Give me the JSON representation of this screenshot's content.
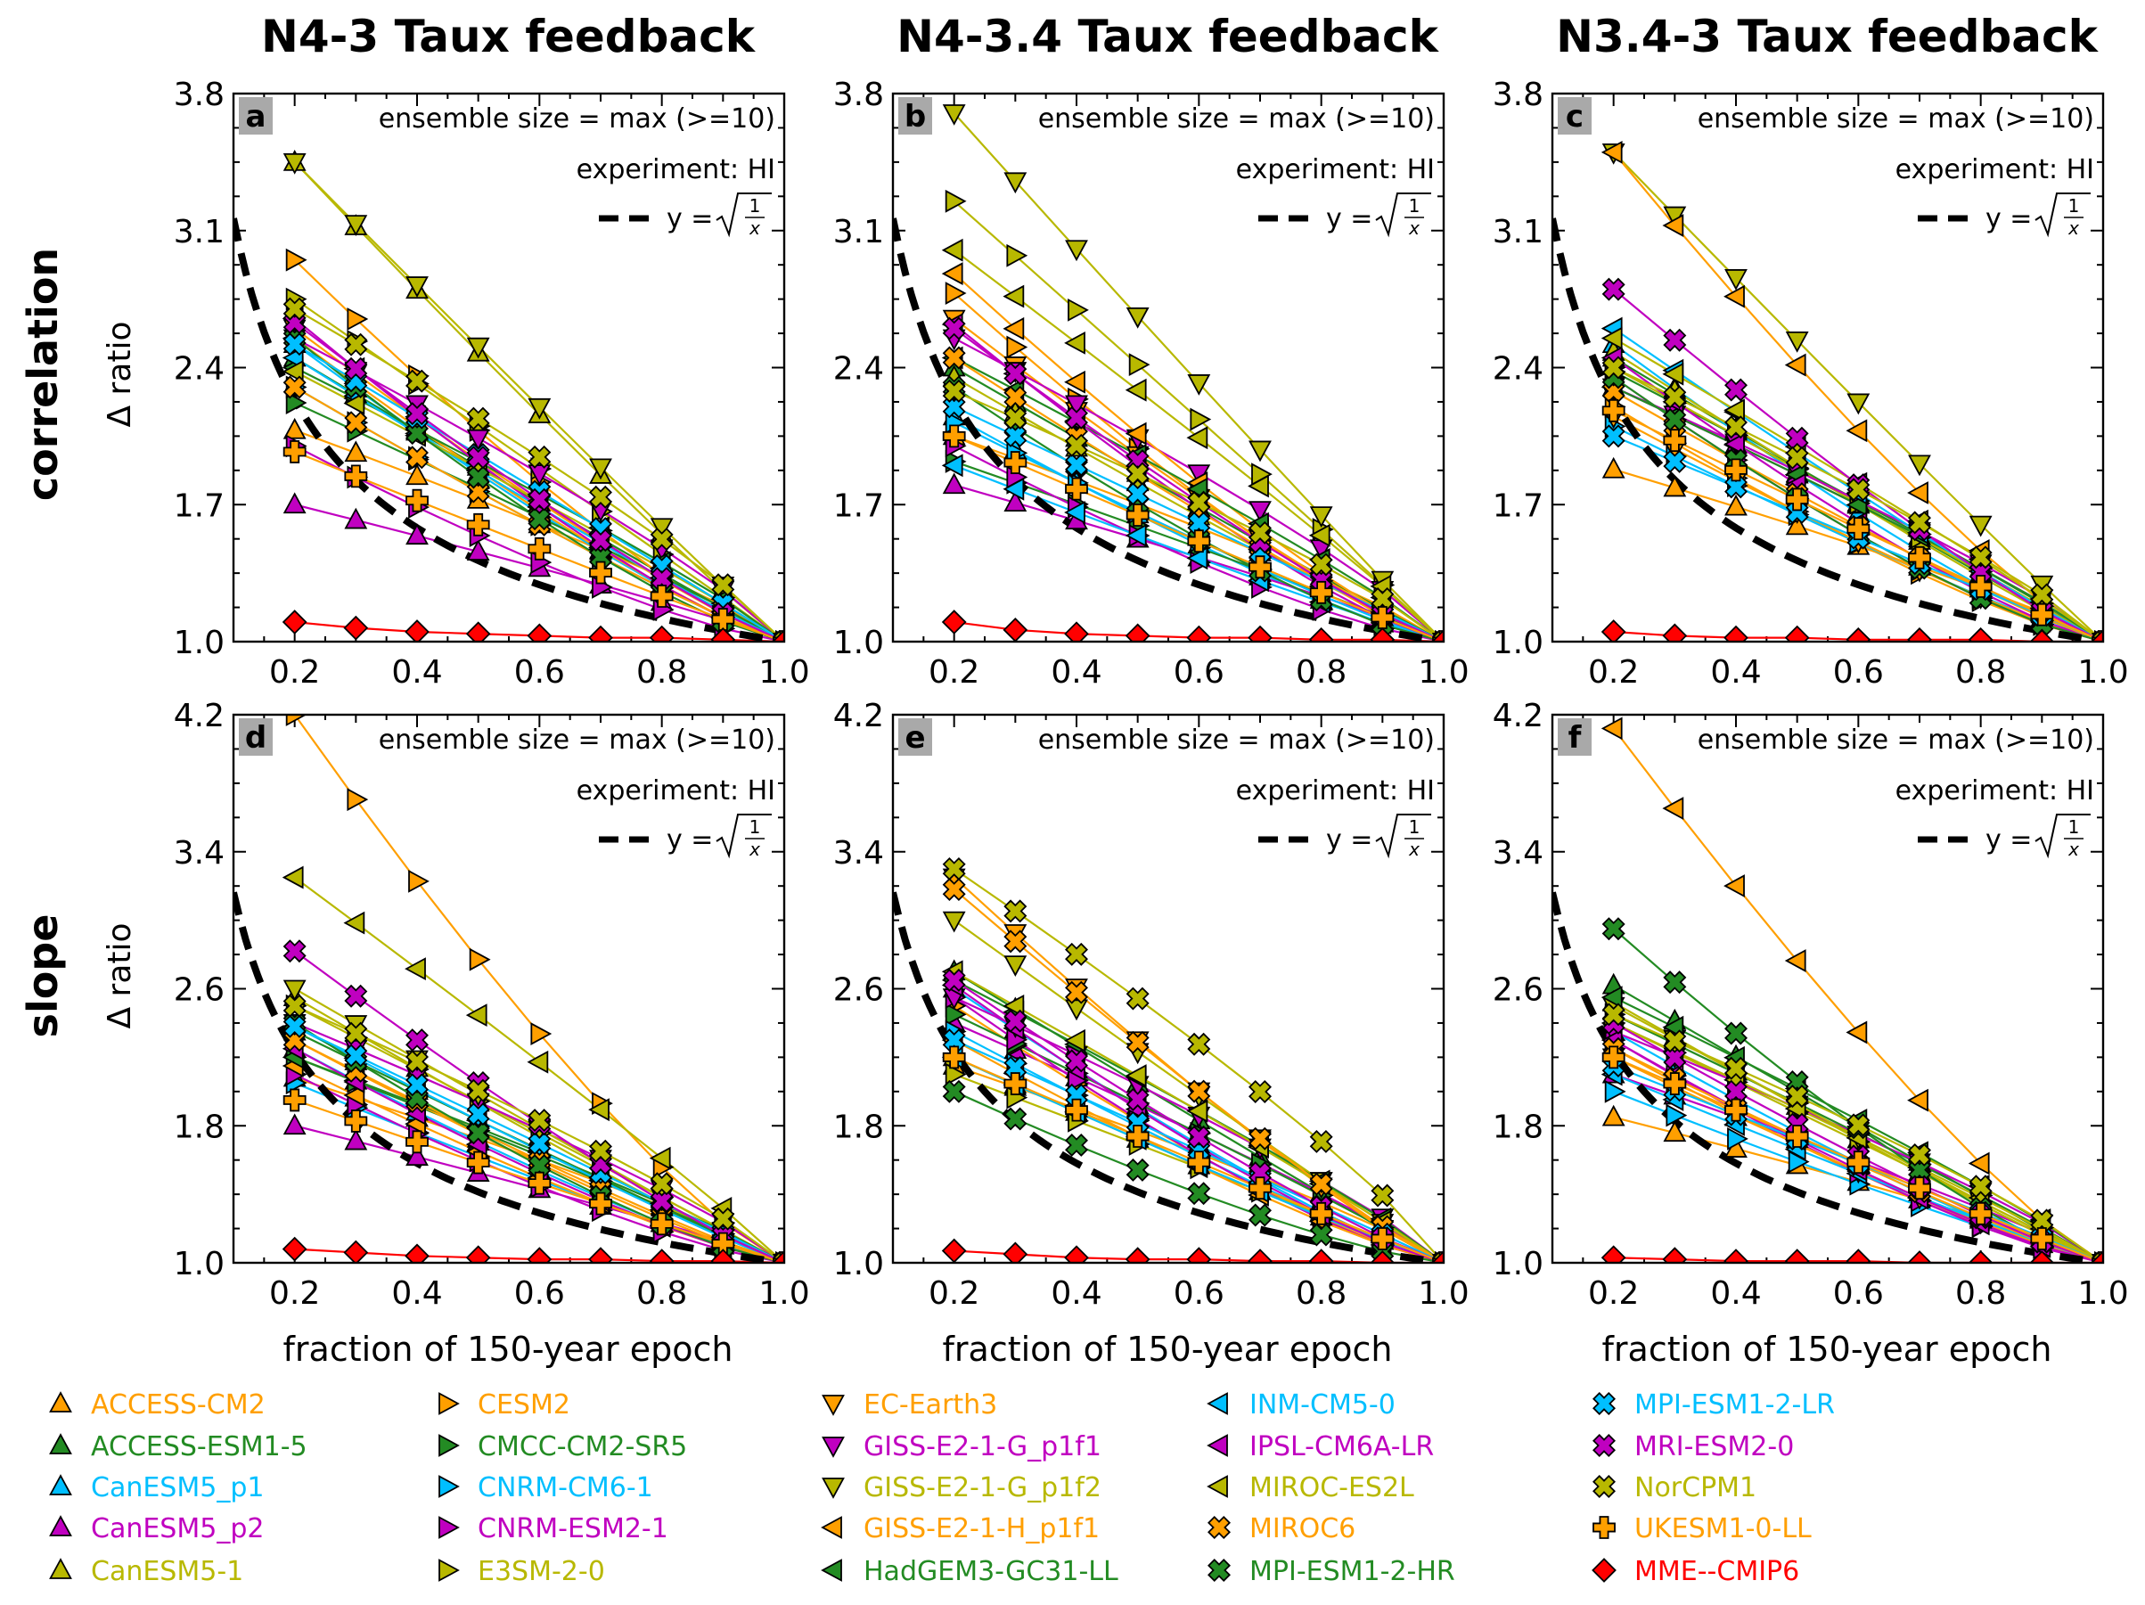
{
  "column_titles": [
    "N4-3 Taux feedback",
    "N4-3.4 Taux feedback",
    "N3.4-3 Taux feedback"
  ],
  "row_labels": [
    "correlation",
    "slope"
  ],
  "ylabel": "Δ ratio",
  "xlabel": "fraction of 150-year epoch",
  "annotations": {
    "ensemble": "ensemble size = max (>=10)",
    "experiment": "experiment: HI",
    "formula_lhs": "y =",
    "formula_num": "1",
    "formula_den": "x"
  },
  "chart_data": {
    "type": "line",
    "x": [
      0.2,
      0.3,
      0.4,
      0.5,
      0.6,
      0.7,
      0.8,
      0.9,
      1.0
    ],
    "xlim": [
      0.1,
      1.0
    ],
    "xticks": [
      "0.2",
      "0.4",
      "0.6",
      "0.8",
      "1.0"
    ],
    "reference_curve": "y = sqrt(1/x)",
    "models": [
      {
        "name": "ACCESS-CM2",
        "color": "#ff9f00",
        "marker": "tri-up"
      },
      {
        "name": "ACCESS-ESM1-5",
        "color": "#238b23",
        "marker": "tri-up"
      },
      {
        "name": "CanESM5_p1",
        "color": "#00bfff",
        "marker": "tri-up"
      },
      {
        "name": "CanESM5_p2",
        "color": "#c000c0",
        "marker": "tri-up"
      },
      {
        "name": "CanESM5-1",
        "color": "#b8b800",
        "marker": "tri-up"
      },
      {
        "name": "CESM2",
        "color": "#ff9f00",
        "marker": "tri-right"
      },
      {
        "name": "CMCC-CM2-SR5",
        "color": "#238b23",
        "marker": "tri-right"
      },
      {
        "name": "CNRM-CM6-1",
        "color": "#00bfff",
        "marker": "tri-right"
      },
      {
        "name": "CNRM-ESM2-1",
        "color": "#c000c0",
        "marker": "tri-right"
      },
      {
        "name": "E3SM-2-0",
        "color": "#b8b800",
        "marker": "tri-right"
      },
      {
        "name": "EC-Earth3",
        "color": "#ff9f00",
        "marker": "tri-down"
      },
      {
        "name": "GISS-E2-1-G_p1f1",
        "color": "#c000c0",
        "marker": "tri-down"
      },
      {
        "name": "GISS-E2-1-G_p1f2",
        "color": "#b8b800",
        "marker": "tri-down"
      },
      {
        "name": "GISS-E2-1-H_p1f1",
        "color": "#ff9f00",
        "marker": "tri-left"
      },
      {
        "name": "HadGEM3-GC31-LL",
        "color": "#238b23",
        "marker": "tri-left"
      },
      {
        "name": "INM-CM5-0",
        "color": "#00bfff",
        "marker": "tri-left"
      },
      {
        "name": "IPSL-CM6A-LR",
        "color": "#c000c0",
        "marker": "tri-left"
      },
      {
        "name": "MIROC-ES2L",
        "color": "#b8b800",
        "marker": "tri-left"
      },
      {
        "name": "MIROC6",
        "color": "#ff9f00",
        "marker": "x"
      },
      {
        "name": "MPI-ESM1-2-HR",
        "color": "#238b23",
        "marker": "x"
      },
      {
        "name": "MPI-ESM1-2-LR",
        "color": "#00bfff",
        "marker": "x"
      },
      {
        "name": "MRI-ESM2-0",
        "color": "#c000c0",
        "marker": "x"
      },
      {
        "name": "NorCPM1",
        "color": "#b8b800",
        "marker": "x"
      },
      {
        "name": "UKESM1-0-LL",
        "color": "#ff9f00",
        "marker": "plus"
      },
      {
        "name": "MME--CMIP6",
        "color": "#ff0000",
        "marker": "diamond"
      }
    ],
    "panels": [
      {
        "letter": "a",
        "column": 0,
        "row": 0,
        "ylim": [
          1.0,
          3.8
        ],
        "yticks": [
          "1.0",
          "1.7",
          "2.4",
          "3.1",
          "3.8"
        ],
        "start": [
          2.08,
          2.45,
          2.52,
          1.7,
          3.45,
          2.95,
          2.22,
          2.3,
          2.0,
          2.75,
          2.6,
          2.55,
          3.45,
          2.55,
          2.4,
          2.45,
          2.65,
          2.38,
          2.3,
          2.55,
          2.52,
          2.63,
          2.7,
          1.97,
          1.1
        ],
        "mme": [
          1.1,
          1.07,
          1.05,
          1.04,
          1.03,
          1.02,
          1.02,
          1.01,
          1.0
        ]
      },
      {
        "letter": "b",
        "column": 1,
        "row": 0,
        "ylim": [
          1.0,
          3.8
        ],
        "yticks": [
          "1.0",
          "1.7",
          "2.4",
          "3.1",
          "3.8"
        ],
        "start": [
          2.05,
          2.4,
          2.15,
          1.8,
          2.35,
          2.78,
          1.92,
          2.12,
          2.0,
          3.25,
          2.65,
          2.55,
          3.7,
          2.88,
          2.45,
          1.9,
          2.62,
          3.0,
          2.45,
          2.3,
          2.2,
          2.6,
          2.28,
          2.05,
          1.1
        ],
        "mme": [
          1.1,
          1.06,
          1.04,
          1.03,
          1.02,
          1.02,
          1.01,
          1.01,
          1.0
        ]
      },
      {
        "letter": "c",
        "column": 2,
        "row": 0,
        "ylim": [
          1.0,
          3.8
        ],
        "yticks": [
          "1.0",
          "1.7",
          "2.4",
          "3.1",
          "3.8"
        ],
        "start": [
          1.88,
          2.45,
          2.52,
          2.3,
          2.48,
          2.2,
          2.38,
          2.1,
          2.35,
          2.4,
          2.15,
          2.3,
          3.5,
          3.5,
          2.3,
          2.6,
          2.45,
          2.55,
          2.28,
          2.35,
          2.05,
          2.8,
          2.4,
          2.18,
          1.05
        ],
        "mme": [
          1.05,
          1.03,
          1.02,
          1.02,
          1.01,
          1.01,
          1.01,
          1.0,
          1.0
        ]
      },
      {
        "letter": "d",
        "column": 0,
        "row": 1,
        "ylim": [
          1.0,
          4.2
        ],
        "yticks": [
          "1.0",
          "1.8",
          "2.6",
          "3.4",
          "4.2"
        ],
        "start": [
          2.08,
          2.35,
          2.25,
          1.8,
          2.55,
          4.2,
          2.2,
          2.05,
          2.1,
          2.5,
          2.3,
          2.4,
          2.6,
          2.15,
          2.2,
          2.38,
          2.25,
          3.25,
          2.3,
          2.4,
          2.38,
          2.82,
          2.5,
          1.95,
          1.08
        ],
        "mme": [
          1.08,
          1.06,
          1.04,
          1.03,
          1.02,
          1.02,
          1.01,
          1.01,
          1.0
        ]
      },
      {
        "letter": "e",
        "column": 1,
        "row": 1,
        "ylim": [
          1.0,
          4.2
        ],
        "yticks": [
          "1.0",
          "1.8",
          "2.6",
          "3.4",
          "4.2"
        ],
        "start": [
          2.15,
          2.7,
          2.6,
          2.4,
          2.2,
          2.5,
          2.45,
          2.35,
          2.55,
          2.1,
          3.25,
          2.55,
          3.0,
          2.3,
          2.65,
          2.2,
          2.62,
          2.7,
          3.18,
          2.0,
          2.3,
          2.65,
          3.3,
          2.2,
          1.07
        ],
        "mme": [
          1.07,
          1.05,
          1.03,
          1.02,
          1.02,
          1.01,
          1.01,
          1.0,
          1.0
        ]
      },
      {
        "letter": "f",
        "column": 2,
        "row": 1,
        "ylim": [
          1.0,
          4.2
        ],
        "yticks": [
          "1.0",
          "1.8",
          "2.6",
          "3.4",
          "4.2"
        ],
        "start": [
          1.85,
          2.62,
          2.35,
          2.1,
          2.52,
          2.25,
          2.45,
          2.0,
          2.3,
          2.4,
          2.2,
          2.35,
          2.5,
          4.12,
          2.55,
          2.1,
          2.3,
          2.4,
          2.25,
          2.95,
          2.15,
          2.4,
          2.45,
          2.2,
          1.03
        ],
        "mme": [
          1.03,
          1.02,
          1.01,
          1.01,
          1.01,
          1.0,
          1.0,
          1.0,
          1.0
        ]
      }
    ]
  }
}
